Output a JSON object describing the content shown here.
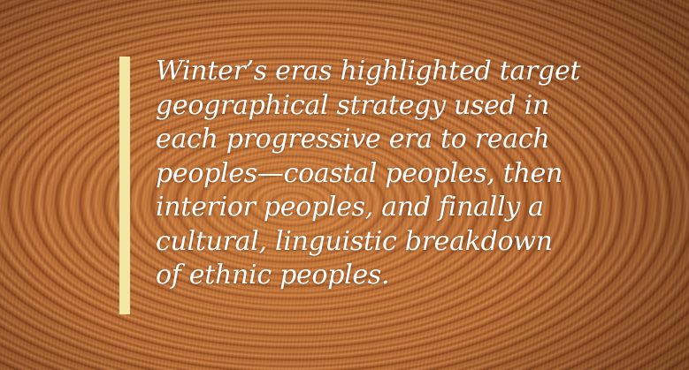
{
  "quote": {
    "lines": [
      "Winter’s eras highlighted target",
      "geographical strategy used in",
      "each progressive era to reach",
      "peoples—coastal peoples, then",
      "interior peoples, and finally a",
      "cultural, linguistic breakdown",
      "of ethnic peoples."
    ]
  }
}
